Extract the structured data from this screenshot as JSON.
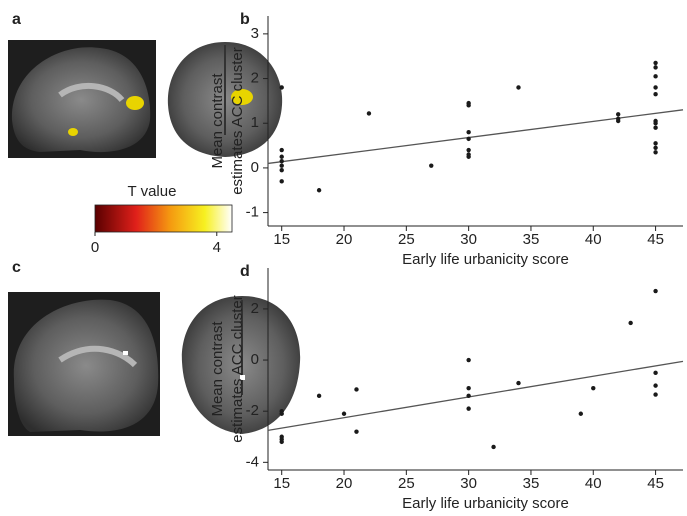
{
  "panel_labels": [
    "a",
    "c"
  ],
  "colorbar": {
    "title": "T value",
    "lim": [
      0,
      4.5
    ],
    "ticks": [
      0,
      4
    ]
  },
  "chart_data": [
    {
      "type": "scatter",
      "panel_label": "b",
      "x_label": "Early life urbanicity score",
      "y_label": [
        "Mean contrast",
        "estimates ACC cluster"
      ],
      "xlim": [
        13.9,
        47.2
      ],
      "xticks": [
        15,
        20,
        25,
        30,
        35,
        40,
        45
      ],
      "ylim": [
        -1.3,
        3.4
      ],
      "yticks": [
        -1,
        0,
        1,
        2,
        3
      ],
      "color": "#1a1a1a",
      "x": [
        15,
        15,
        15,
        15,
        15,
        15,
        15,
        18,
        22,
        27,
        30,
        30,
        30,
        30,
        30,
        30,
        30,
        34,
        42,
        42,
        42,
        45,
        45,
        45,
        45,
        45,
        45,
        45,
        45,
        45,
        45,
        45
      ],
      "values": [
        1.8,
        0.4,
        0.25,
        0.15,
        0.05,
        -0.05,
        -0.3,
        -0.5,
        1.22,
        0.05,
        1.45,
        1.4,
        0.8,
        0.65,
        0.4,
        0.3,
        0.25,
        1.8,
        1.2,
        1.1,
        1.05,
        2.35,
        2.25,
        2.05,
        1.8,
        1.65,
        1.05,
        1.0,
        0.9,
        0.55,
        0.45,
        0.35
      ],
      "trend_line": {
        "x": [
          13.9,
          47.2
        ],
        "y": [
          0.1,
          1.3
        ],
        "color": "#555555"
      }
    },
    {
      "type": "scatter",
      "panel_label": "d",
      "x_label": "Early life urbanicity score",
      "y_label": [
        "Mean contrast",
        "estimates ACC cluster"
      ],
      "xlim": [
        13.9,
        47.2
      ],
      "xticks": [
        15,
        20,
        25,
        30,
        35,
        40,
        45
      ],
      "ylim": [
        -4.3,
        3.6
      ],
      "yticks": [
        -4,
        -2,
        0,
        2
      ],
      "color": "#1a1a1a",
      "x": [
        15,
        15,
        15,
        15,
        15,
        18,
        20,
        21,
        21,
        30,
        30,
        30,
        30,
        32,
        34,
        39,
        40,
        43,
        45,
        45,
        45,
        45
      ],
      "values": [
        -2.0,
        -2.1,
        -3.0,
        -3.1,
        -3.2,
        -1.4,
        -2.1,
        -1.15,
        -2.8,
        0.0,
        -1.1,
        -1.4,
        -1.9,
        -3.4,
        -0.9,
        -2.1,
        -1.1,
        1.45,
        2.7,
        -0.5,
        -1.0,
        -1.35
      ],
      "trend_line": {
        "x": [
          13.9,
          47.2
        ],
        "y": [
          -2.75,
          -0.05
        ],
        "color": "#555555"
      }
    }
  ]
}
